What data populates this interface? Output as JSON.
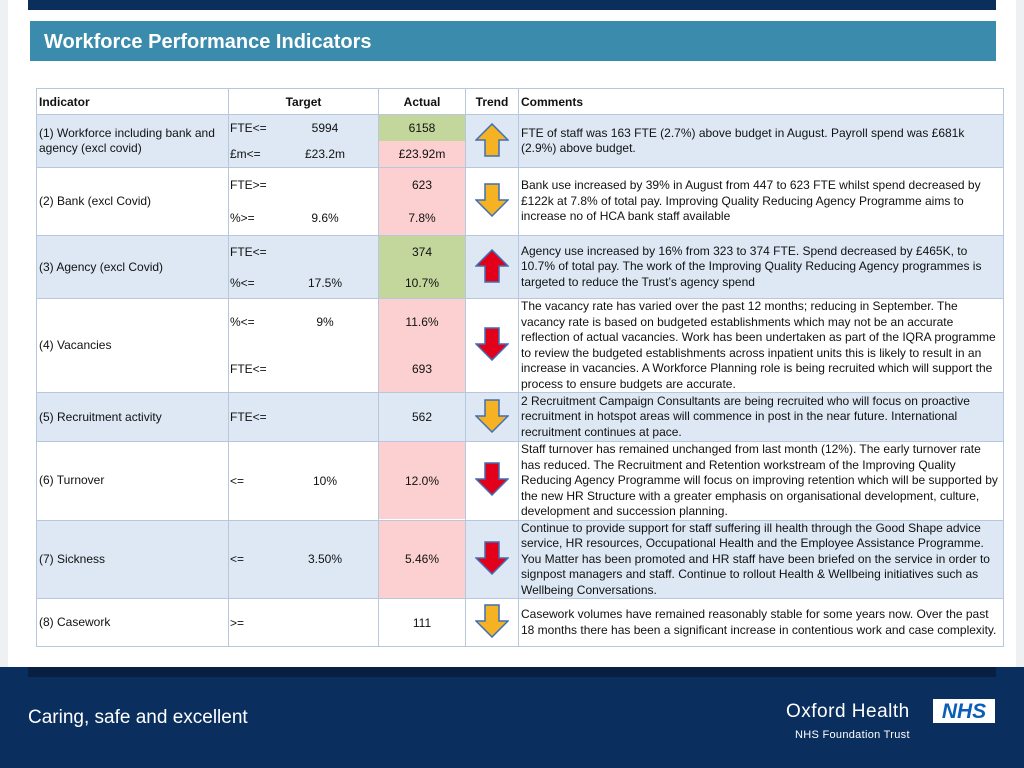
{
  "header": {
    "title": "Workforce Performance Indicators"
  },
  "table": {
    "columns": [
      "Indicator",
      "Target",
      "Actual",
      "Trend",
      "Comments"
    ],
    "rows": [
      {
        "indicator": "(1) Workforce including bank and agency (excl covid)",
        "lines": [
          {
            "op": "FTE<=",
            "target": "5994",
            "actual": "6158",
            "status": "green"
          },
          {
            "op": "£m<=",
            "target": "£23.2m",
            "actual": "£23.92m",
            "status": "red"
          }
        ],
        "trend": "up",
        "trend_color": "amber",
        "comment": "FTE of staff was 163 FTE (2.7%) above budget in August. Payroll spend was £681k (2.9%) above budget."
      },
      {
        "indicator": "(2) Bank (excl Covid)",
        "lines": [
          {
            "op": "FTE>=",
            "actual": "623",
            "status": "red"
          },
          {
            "op": "%>=",
            "target": "9.6%",
            "actual": "7.8%",
            "status": "red"
          }
        ],
        "trend": "down",
        "trend_color": "amber",
        "comment": "Bank use increased by 39% in August  from  447 to 623 FTE whilst spend decreased by £122k at 7.8% of total pay. Improving Quality Reducing Agency Programme aims to increase no of HCA bank staff available"
      },
      {
        "indicator": "(3) Agency (excl Covid)",
        "lines": [
          {
            "op": "FTE<=",
            "actual": "374",
            "status": "green"
          },
          {
            "op": "%<=",
            "target": "17.5%",
            "actual": "10.7%",
            "status": "green"
          }
        ],
        "trend": "up",
        "trend_color": "red",
        "comment": "Agency use increased by 16% from  323 to 374 FTE.  Spend decreased by £465K, to 10.7% of total pay. The work of the Improving Quality Reducing Agency programmes is targeted to reduce the Trust’s agency spend"
      },
      {
        "indicator": "(4) Vacancies",
        "lines": [
          {
            "op": "%<=",
            "target": "9%",
            "actual": "11.6%",
            "status": "red"
          },
          {
            "op": "FTE<=",
            "actual": "693",
            "status": "red"
          }
        ],
        "trend": "down",
        "trend_color": "red",
        "comment": "The vacancy rate has varied over the past 12 months; reducing in September. The vacancy rate is based on budgeted establishments which may not be an accurate reflection of actual vacancies. Work has been undertaken as part of the IQRA programme to review the budgeted establishments across inpatient units this is likely to result in an increase in vacancies.  A Workforce Planning role is being recruited which will support the process to ensure budgets are accurate."
      },
      {
        "indicator": "(5) Recruitment activity",
        "lines": [
          {
            "op": "FTE<=",
            "actual": "562",
            "status": "none"
          }
        ],
        "trend": "down",
        "trend_color": "amber",
        "comment": "2 Recruitment Campaign Consultants are being recruited who will focus on proactive recruitment in hotspot areas will commence in post in the near future.  International recruitment continues at pace."
      },
      {
        "indicator": "(6) Turnover",
        "lines": [
          {
            "op": "<=",
            "target": "10%",
            "actual": "12.0%",
            "status": "red"
          }
        ],
        "trend": "down",
        "trend_color": "red",
        "comment": "Staff turnover has remained unchanged from last month (12%). The early turnover rate has reduced. The Recruitment and Retention workstream of the Improving Quality Reducing Agency Programme will focus on improving retention which will be supported by the new HR Structure with a greater emphasis on organisational development, culture, development and succession planning."
      },
      {
        "indicator": "(7) Sickness",
        "lines": [
          {
            "op": "<=",
            "target": "3.50%",
            "actual": "5.46%",
            "status": "red"
          }
        ],
        "trend": "down",
        "trend_color": "red",
        "comment": "Continue to provide support for staff suffering ill health through the Good Shape advice service, HR resources, Occupational Health and the Employee Assistance Programme. You Matter has been promoted and HR staff have been briefed on the service in order to signpost managers and staff. Continue to rollout Health & Wellbeing initiatives such as Wellbeing Conversations."
      },
      {
        "indicator": "(8) Casework",
        "lines": [
          {
            "op": ">=",
            "actual": "111",
            "status": "none"
          }
        ],
        "trend": "down",
        "trend_color": "amber",
        "comment": "Casework volumes have remained reasonably stable for some years now. Over the past 18 months there has been a significant increase in contentious work and case complexity."
      }
    ]
  },
  "footer": {
    "tagline": "Caring, safe and excellent",
    "org": "Oxford Health",
    "suborg": "NHS Foundation Trust",
    "badge": "NHS"
  }
}
